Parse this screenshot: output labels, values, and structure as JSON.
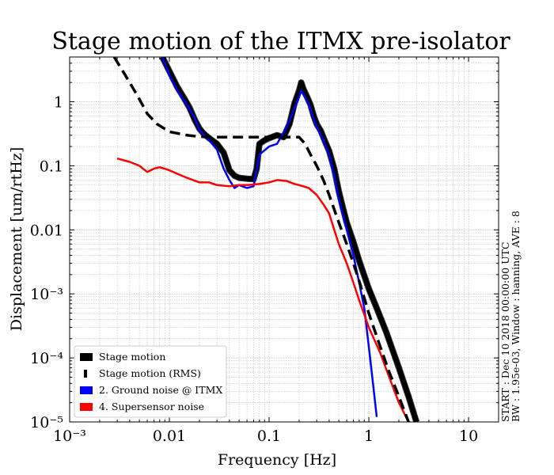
{
  "chart_data": {
    "type": "line",
    "title": "Stage motion of the ITMX pre-isolator",
    "xlabel": "Frequency [Hz]",
    "ylabel": "Displacement [um/rtHz]",
    "xscale": "log",
    "yscale": "log",
    "xlim": [
      0.001,
      20
    ],
    "ylim": [
      1e-05,
      5
    ],
    "grid": true,
    "x_ticks": [
      {
        "value": 0.001,
        "label": "10⁻³"
      },
      {
        "value": 0.01,
        "label": "0.01"
      },
      {
        "value": 0.1,
        "label": "0.1"
      },
      {
        "value": 1,
        "label": "1"
      },
      {
        "value": 10,
        "label": "10"
      }
    ],
    "y_ticks": [
      {
        "value": 1e-05,
        "label": "10⁻⁵"
      },
      {
        "value": 0.0001,
        "label": "10⁻⁴"
      },
      {
        "value": 0.001,
        "label": "10⁻³"
      },
      {
        "value": 0.01,
        "label": "0.01"
      },
      {
        "value": 0.1,
        "label": "0.1"
      },
      {
        "value": 1,
        "label": "1"
      }
    ],
    "legend_position": "lower-left",
    "side_note": [
      "START : Dec 10 2018 00:00:00 UTC",
      "BW : 1.95e-03, Window : hanning, AVE : 8"
    ],
    "series": [
      {
        "name": "Stage motion",
        "color": "#000000",
        "style": "thick",
        "points": [
          [
            0.0085,
            5.0
          ],
          [
            0.01,
            3.0
          ],
          [
            0.012,
            1.7
          ],
          [
            0.014,
            1.15
          ],
          [
            0.016,
            0.8
          ],
          [
            0.018,
            0.52
          ],
          [
            0.02,
            0.38
          ],
          [
            0.022,
            0.32
          ],
          [
            0.025,
            0.27
          ],
          [
            0.03,
            0.22
          ],
          [
            0.035,
            0.16
          ],
          [
            0.04,
            0.085
          ],
          [
            0.045,
            0.07
          ],
          [
            0.05,
            0.065
          ],
          [
            0.06,
            0.063
          ],
          [
            0.07,
            0.062
          ],
          [
            0.075,
            0.09
          ],
          [
            0.08,
            0.22
          ],
          [
            0.09,
            0.25
          ],
          [
            0.1,
            0.27
          ],
          [
            0.12,
            0.3
          ],
          [
            0.14,
            0.28
          ],
          [
            0.16,
            0.45
          ],
          [
            0.18,
            0.95
          ],
          [
            0.2,
            1.5
          ],
          [
            0.21,
            2.0
          ],
          [
            0.22,
            1.6
          ],
          [
            0.24,
            1.2
          ],
          [
            0.26,
            0.9
          ],
          [
            0.28,
            0.6
          ],
          [
            0.3,
            0.45
          ],
          [
            0.33,
            0.35
          ],
          [
            0.36,
            0.25
          ],
          [
            0.4,
            0.17
          ],
          [
            0.45,
            0.09
          ],
          [
            0.5,
            0.04
          ],
          [
            0.55,
            0.022
          ],
          [
            0.6,
            0.013
          ],
          [
            0.7,
            0.0065
          ],
          [
            0.8,
            0.0033
          ],
          [
            1.0,
            0.0012
          ],
          [
            1.2,
            0.0006
          ],
          [
            1.5,
            0.00025
          ],
          [
            2.0,
            7e-05
          ],
          [
            2.5,
            2.5e-05
          ],
          [
            3.0,
            1e-05
          ]
        ]
      },
      {
        "name": "Stage motion (RMS)",
        "color": "#000000",
        "style": "dashed",
        "points": [
          [
            0.0028,
            5.0
          ],
          [
            0.004,
            2.0
          ],
          [
            0.005,
            1.1
          ],
          [
            0.006,
            0.65
          ],
          [
            0.0075,
            0.45
          ],
          [
            0.01,
            0.34
          ],
          [
            0.015,
            0.3
          ],
          [
            0.02,
            0.285
          ],
          [
            0.03,
            0.28
          ],
          [
            0.05,
            0.28
          ],
          [
            0.1,
            0.28
          ],
          [
            0.15,
            0.28
          ],
          [
            0.2,
            0.28
          ],
          [
            0.23,
            0.22
          ],
          [
            0.26,
            0.15
          ],
          [
            0.3,
            0.1
          ],
          [
            0.35,
            0.06
          ],
          [
            0.4,
            0.035
          ],
          [
            0.5,
            0.013
          ],
          [
            0.6,
            0.006
          ],
          [
            0.7,
            0.003
          ],
          [
            0.8,
            0.0016
          ],
          [
            1.0,
            0.0005
          ],
          [
            1.3,
            0.00015
          ],
          [
            1.6,
            6e-05
          ],
          [
            2.0,
            2.5e-05
          ],
          [
            2.5,
            1e-05
          ]
        ]
      },
      {
        "name": "2. Ground noise @ ITMX",
        "color": "#0000ff",
        "style": "solid",
        "points": [
          [
            0.0085,
            5.0
          ],
          [
            0.01,
            2.6
          ],
          [
            0.012,
            1.5
          ],
          [
            0.015,
            0.9
          ],
          [
            0.018,
            0.55
          ],
          [
            0.02,
            0.36
          ],
          [
            0.025,
            0.25
          ],
          [
            0.03,
            0.18
          ],
          [
            0.035,
            0.09
          ],
          [
            0.04,
            0.06
          ],
          [
            0.045,
            0.045
          ],
          [
            0.05,
            0.05
          ],
          [
            0.06,
            0.045
          ],
          [
            0.07,
            0.048
          ],
          [
            0.08,
            0.15
          ],
          [
            0.1,
            0.2
          ],
          [
            0.12,
            0.22
          ],
          [
            0.15,
            0.4
          ],
          [
            0.18,
            0.8
          ],
          [
            0.2,
            1.2
          ],
          [
            0.21,
            1.5
          ],
          [
            0.22,
            1.3
          ],
          [
            0.25,
            0.9
          ],
          [
            0.3,
            0.4
          ],
          [
            0.35,
            0.25
          ],
          [
            0.4,
            0.15
          ],
          [
            0.45,
            0.07
          ],
          [
            0.5,
            0.03
          ],
          [
            0.6,
            0.01
          ],
          [
            0.7,
            0.004
          ],
          [
            0.8,
            0.0015
          ],
          [
            0.9,
            0.0006
          ],
          [
            1.0,
            0.00015
          ],
          [
            1.1,
            4e-05
          ],
          [
            1.2,
            1.2e-05
          ]
        ]
      },
      {
        "name": "4. Supersensor noise",
        "color": "#ff0000",
        "style": "solid",
        "points": [
          [
            0.003,
            0.13
          ],
          [
            0.004,
            0.115
          ],
          [
            0.005,
            0.1
          ],
          [
            0.006,
            0.08
          ],
          [
            0.007,
            0.09
          ],
          [
            0.008,
            0.095
          ],
          [
            0.01,
            0.085
          ],
          [
            0.012,
            0.075
          ],
          [
            0.015,
            0.065
          ],
          [
            0.02,
            0.055
          ],
          [
            0.025,
            0.055
          ],
          [
            0.03,
            0.05
          ],
          [
            0.04,
            0.048
          ],
          [
            0.05,
            0.05
          ],
          [
            0.06,
            0.05
          ],
          [
            0.08,
            0.052
          ],
          [
            0.1,
            0.055
          ],
          [
            0.12,
            0.06
          ],
          [
            0.15,
            0.058
          ],
          [
            0.18,
            0.052
          ],
          [
            0.2,
            0.05
          ],
          [
            0.25,
            0.045
          ],
          [
            0.3,
            0.035
          ],
          [
            0.35,
            0.025
          ],
          [
            0.4,
            0.018
          ],
          [
            0.45,
            0.01
          ],
          [
            0.5,
            0.006
          ],
          [
            0.6,
            0.003
          ],
          [
            0.7,
            0.0015
          ],
          [
            0.8,
            0.0008
          ],
          [
            1.0,
            0.0003
          ],
          [
            1.3,
            0.00012
          ],
          [
            1.6,
            5e-05
          ],
          [
            2.0,
            2e-05
          ],
          [
            2.5,
            1e-05
          ]
        ]
      }
    ]
  }
}
